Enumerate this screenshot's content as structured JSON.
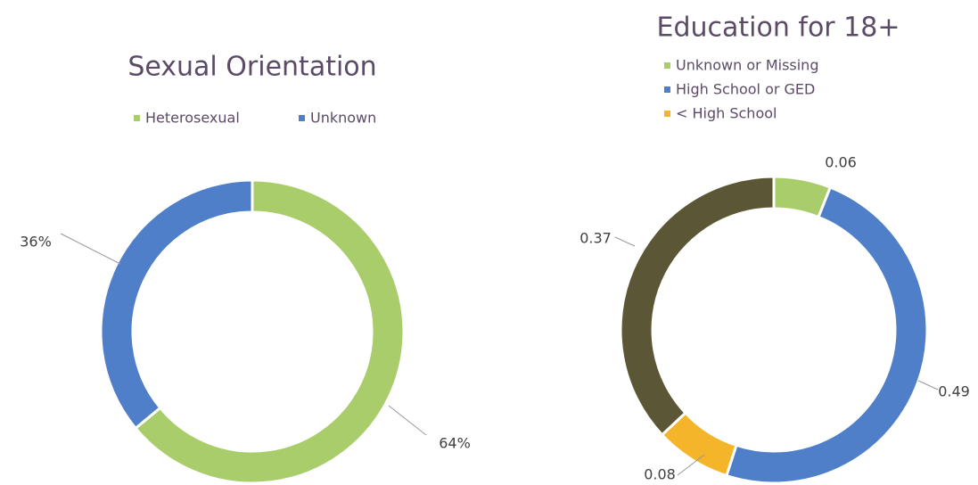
{
  "chart_data": [
    {
      "type": "donut",
      "title": "Sexual Orientation",
      "categories": [
        "Heterosexual",
        "Unknown"
      ],
      "values": [
        64,
        36
      ],
      "value_labels": [
        "64%",
        "36%"
      ],
      "colors": [
        "#a9cd6b",
        "#4f7fc8"
      ],
      "legend": "top"
    },
    {
      "type": "donut",
      "title": "Education for 18+",
      "categories": [
        "Unknown or Missing",
        "High School or GED",
        "< High School",
        null
      ],
      "values": [
        0.06,
        0.49,
        0.08,
        0.37
      ],
      "colors": [
        "#a9cd6b",
        "#4f7fc8",
        "#f5b52a",
        "#5b5636"
      ],
      "legend": "top-left"
    }
  ]
}
